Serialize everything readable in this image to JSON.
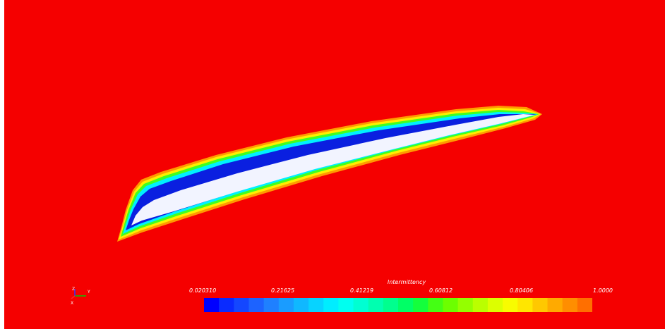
{
  "scene": {
    "background_color": "#f50000",
    "axis_labels": {
      "x": "Y",
      "y": "Z",
      "z": "X"
    }
  },
  "legend": {
    "title": "Intermittency",
    "tick_labels": [
      "0.020310",
      "0.21625",
      "0.41219",
      "0.60812",
      "0.80406",
      "1.0000"
    ],
    "color_bands": [
      "#0000ff",
      "#0a2bff",
      "#1447ff",
      "#1d63ff",
      "#1f80ff",
      "#1a9cff",
      "#10b8ff",
      "#07d3ff",
      "#00edff",
      "#00fff0",
      "#00ffd2",
      "#00ffb0",
      "#00ff8e",
      "#00ff66",
      "#14ff3c",
      "#44ff14",
      "#6cff00",
      "#94ff00",
      "#baff00",
      "#dcff00",
      "#f8fc00",
      "#ffe600",
      "#ffc800",
      "#ffaa00",
      "#ff8e00",
      "#ff6f00"
    ]
  }
}
